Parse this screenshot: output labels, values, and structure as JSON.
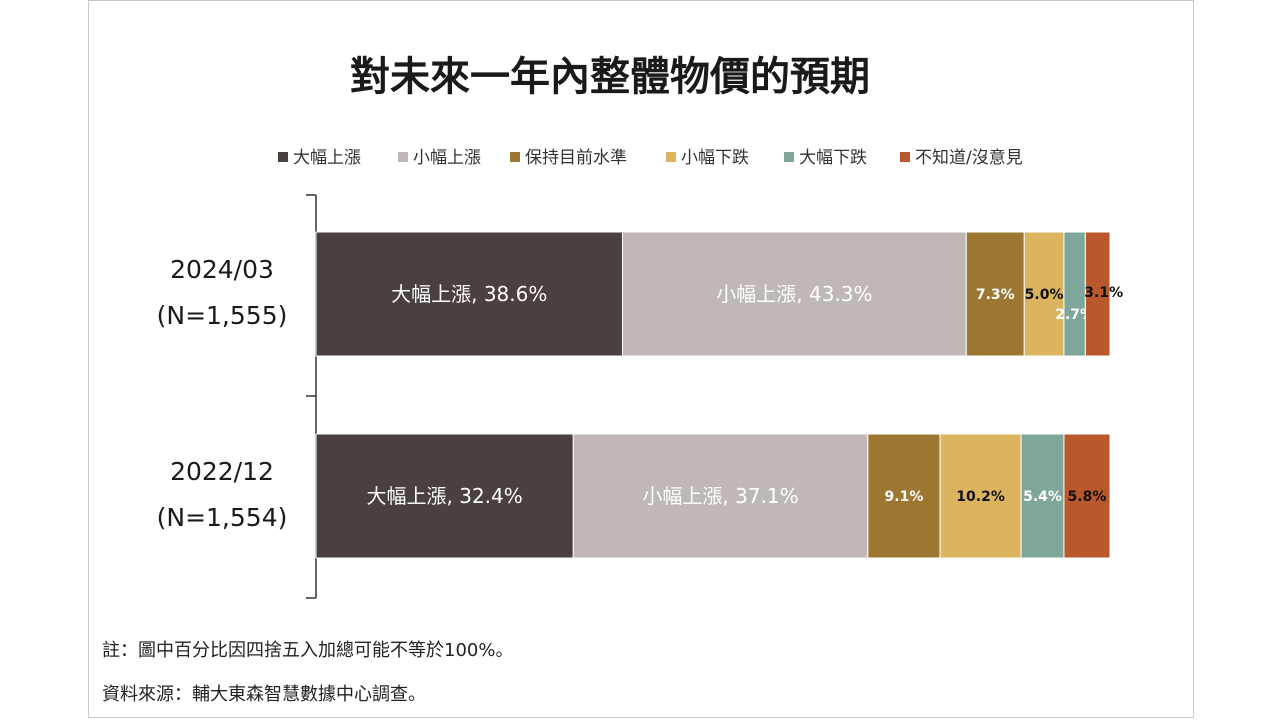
{
  "title": "對未來一年內整體物價的預期",
  "notes": {
    "note1": "註：圖中百分比因四捨五入加總可能不等於100%。",
    "note2": "資料來源：輔大東森智慧數據中心調查。"
  },
  "chart_data": {
    "type": "bar",
    "orientation": "horizontal",
    "stacked": true,
    "xlim": [
      0,
      100
    ],
    "legend_position": "top",
    "grid": false,
    "categories": [
      {
        "line1": "2024/03",
        "line2": "(N=1,555)"
      },
      {
        "line1": "2022/12",
        "line2": "(N=1,554)"
      }
    ],
    "series": [
      {
        "name": "大幅上漲",
        "color": "#4b4040",
        "values": [
          38.6,
          32.4
        ],
        "labels": [
          "大幅上漲, 38.6%",
          "大幅上漲, 32.4%"
        ]
      },
      {
        "name": "小幅上漲",
        "color": "#bfb8b6",
        "values": [
          43.3,
          37.1
        ],
        "labels": [
          "小幅上漲, 43.3%",
          "小幅上漲, 37.1%"
        ]
      },
      {
        "name": "保持目前水準",
        "color": "#9c7732",
        "values": [
          7.3,
          9.1
        ],
        "labels": [
          "7.3%",
          "9.1%"
        ]
      },
      {
        "name": "小幅下跌",
        "color": "#dcb45f",
        "values": [
          5.0,
          10.2
        ],
        "labels": [
          "5.0%",
          "10.2%"
        ]
      },
      {
        "name": "大幅下跌",
        "color": "#7fa69b",
        "values": [
          2.7,
          5.4
        ],
        "labels": [
          "2.7%",
          "5.4%"
        ]
      },
      {
        "name": "不知道/沒意見",
        "color": "#b9582a",
        "values": [
          3.1,
          5.8
        ],
        "labels": [
          "3.1%",
          "5.8%"
        ]
      }
    ]
  }
}
